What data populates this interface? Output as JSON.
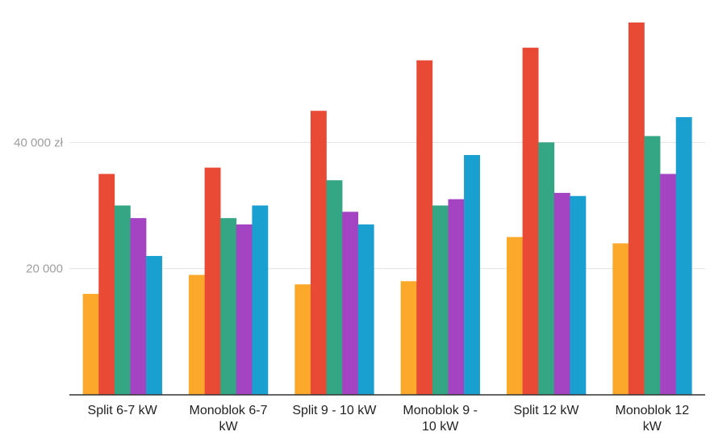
{
  "chart_data": {
    "type": "bar",
    "categories": [
      [
        "Split 6-7 kW"
      ],
      [
        "Monoblok 6-7",
        "kW"
      ],
      [
        "Split 9 - 10 kW"
      ],
      [
        "Monoblok 9 -",
        "10 kW"
      ],
      [
        "Split 12 kW"
      ],
      [
        "Monoblok 12",
        "kW"
      ]
    ],
    "series": [
      {
        "color": "#fba82b",
        "values": [
          16000,
          19000,
          17500,
          18000,
          25000,
          24000
        ]
      },
      {
        "color": "#e84a35",
        "values": [
          35000,
          36000,
          45000,
          53000,
          55000,
          59000
        ]
      },
      {
        "color": "#35a684",
        "values": [
          30000,
          28000,
          34000,
          30000,
          40000,
          41000
        ]
      },
      {
        "color": "#a444c2",
        "values": [
          28000,
          27000,
          29000,
          31000,
          32000,
          35000
        ]
      },
      {
        "color": "#1aa0d0",
        "values": [
          22000,
          30000,
          27000,
          38000,
          31500,
          44000
        ]
      }
    ],
    "y_ticks": [
      {
        "value": 20000,
        "label": "20 000"
      },
      {
        "value": 40000,
        "label": "40 000 zł"
      }
    ],
    "ylim": [
      0,
      60000
    ],
    "grid": true,
    "legend": "none"
  }
}
